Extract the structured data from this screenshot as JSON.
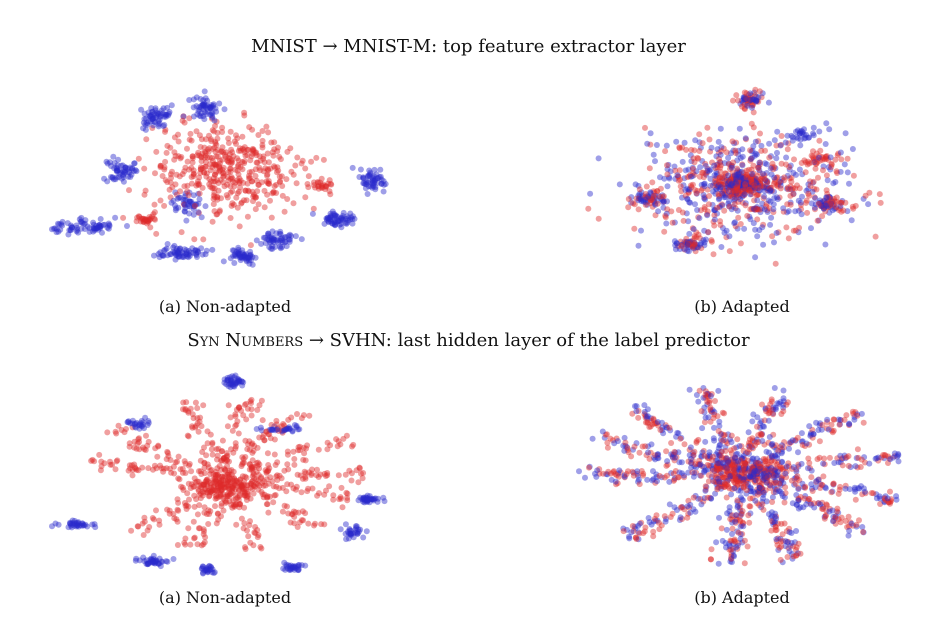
{
  "titles": {
    "top": "MNIST → MNIST-M: top feature extractor layer",
    "bottom_sc": "Syn Numbers",
    "bottom_rest": " → SVHN: last hidden layer of the label predictor"
  },
  "captions": {
    "top_a": "(a) Non-adapted",
    "top_b": "(b) Adapted",
    "bottom_a": "(a) Non-adapted",
    "bottom_b": "(b) Adapted"
  },
  "colors": {
    "source": "#dd2a2a",
    "target": "#2a2acc"
  },
  "chart_data": [
    {
      "type": "scatter",
      "panel": "MNIST → MNIST-M (a) Non-adapted",
      "xlim": [
        -1,
        1
      ],
      "ylim": [
        -1,
        1
      ],
      "series": [
        {
          "color": "#dd2a2a",
          "clusters": [
            {
              "center": [
                0.0,
                0.15
              ],
              "spread": [
                0.42,
                0.45
              ],
              "count": 420
            },
            {
              "center": [
                -0.45,
                -0.35
              ],
              "spread": [
                0.08,
                0.05
              ],
              "count": 30
            },
            {
              "center": [
                0.55,
                0.0
              ],
              "spread": [
                0.08,
                0.06
              ],
              "count": 25
            }
          ]
        },
        {
          "color": "#2a2acc",
          "clusters": [
            {
              "center": [
                -0.82,
                -0.42
              ],
              "spread": [
                0.2,
                0.07
              ],
              "count": 70
            },
            {
              "center": [
                -0.6,
                0.15
              ],
              "spread": [
                0.08,
                0.12
              ],
              "count": 55
            },
            {
              "center": [
                -0.4,
                0.68
              ],
              "spread": [
                0.1,
                0.12
              ],
              "count": 60
            },
            {
              "center": [
                -0.12,
                0.75
              ],
              "spread": [
                0.1,
                0.12
              ],
              "count": 55
            },
            {
              "center": [
                -0.25,
                -0.68
              ],
              "spread": [
                0.12,
                0.07
              ],
              "count": 65
            },
            {
              "center": [
                0.1,
                -0.72
              ],
              "spread": [
                0.08,
                0.08
              ],
              "count": 50
            },
            {
              "center": [
                0.3,
                -0.55
              ],
              "spread": [
                0.1,
                0.1
              ],
              "count": 55
            },
            {
              "center": [
                0.65,
                -0.35
              ],
              "spread": [
                0.1,
                0.08
              ],
              "count": 60
            },
            {
              "center": [
                0.85,
                0.05
              ],
              "spread": [
                0.08,
                0.1
              ],
              "count": 55
            },
            {
              "center": [
                -0.2,
                -0.2
              ],
              "spread": [
                0.1,
                0.12
              ],
              "count": 45
            }
          ]
        }
      ]
    },
    {
      "type": "scatter",
      "panel": "MNIST → MNIST-M (b) Adapted",
      "xlim": [
        -1,
        1
      ],
      "ylim": [
        -1,
        1
      ],
      "series": [
        {
          "color": "#dd2a2a",
          "clusters": [
            {
              "center": [
                0.0,
                0.0
              ],
              "spread": [
                0.6,
                0.5
              ],
              "count": 330
            },
            {
              "center": [
                0.0,
                0.0
              ],
              "spread": [
                0.15,
                0.1
              ],
              "count": 140
            },
            {
              "center": [
                0.05,
                0.85
              ],
              "spread": [
                0.07,
                0.07
              ],
              "count": 30
            },
            {
              "center": [
                -0.55,
                -0.15
              ],
              "spread": [
                0.1,
                0.08
              ],
              "count": 30
            },
            {
              "center": [
                0.5,
                -0.2
              ],
              "spread": [
                0.1,
                0.07
              ],
              "count": 30
            },
            {
              "center": [
                0.45,
                0.25
              ],
              "spread": [
                0.12,
                0.08
              ],
              "count": 30
            },
            {
              "center": [
                -0.3,
                -0.6
              ],
              "spread": [
                0.12,
                0.06
              ],
              "count": 30
            }
          ]
        },
        {
          "color": "#2a2acc",
          "clusters": [
            {
              "center": [
                0.0,
                0.0
              ],
              "spread": [
                0.6,
                0.5
              ],
              "count": 330
            },
            {
              "center": [
                0.0,
                0.0
              ],
              "spread": [
                0.12,
                0.08
              ],
              "count": 90
            },
            {
              "center": [
                0.05,
                0.85
              ],
              "spread": [
                0.07,
                0.07
              ],
              "count": 30
            },
            {
              "center": [
                -0.55,
                -0.15
              ],
              "spread": [
                0.1,
                0.08
              ],
              "count": 30
            },
            {
              "center": [
                0.5,
                -0.2
              ],
              "spread": [
                0.1,
                0.07
              ],
              "count": 30
            },
            {
              "center": [
                0.35,
                0.5
              ],
              "spread": [
                0.12,
                0.08
              ],
              "count": 30
            },
            {
              "center": [
                -0.3,
                -0.6
              ],
              "spread": [
                0.12,
                0.06
              ],
              "count": 30
            }
          ]
        }
      ]
    },
    {
      "type": "scatter",
      "panel": "Syn Numbers → SVHN (a) Non-adapted",
      "xlim": [
        -1,
        1
      ],
      "ylim": [
        -1,
        1
      ],
      "series": [
        {
          "color": "#dd2a2a",
          "clusters": [
            {
              "center": [
                0.0,
                -0.1
              ],
              "spread": [
                0.22,
                0.18
              ],
              "count": 200
            }
          ],
          "arms_angles_deg": [
            100,
            75,
            52,
            20,
            -5,
            -25,
            -52,
            -82,
            -110,
            -135,
            165,
            140
          ],
          "arm_length": 0.6
        },
        {
          "color": "#2a2acc",
          "clusters": [
            {
              "center": [
                0.05,
                0.92
              ],
              "spread": [
                0.06,
                0.06
              ],
              "count": 40
            },
            {
              "center": [
                0.35,
                0.45
              ],
              "spread": [
                0.12,
                0.04
              ],
              "count": 30
            },
            {
              "center": [
                0.82,
                -0.25
              ],
              "spread": [
                0.08,
                0.04
              ],
              "count": 35
            },
            {
              "center": [
                0.75,
                -0.58
              ],
              "spread": [
                0.06,
                0.06
              ],
              "count": 30
            },
            {
              "center": [
                0.38,
                -0.92
              ],
              "spread": [
                0.06,
                0.05
              ],
              "count": 30
            },
            {
              "center": [
                -0.1,
                -0.95
              ],
              "spread": [
                0.05,
                0.05
              ],
              "count": 25
            },
            {
              "center": [
                -0.42,
                -0.86
              ],
              "spread": [
                0.1,
                0.05
              ],
              "count": 40
            },
            {
              "center": [
                -0.85,
                -0.5
              ],
              "spread": [
                0.12,
                0.03
              ],
              "count": 35
            },
            {
              "center": [
                -0.5,
                0.5
              ],
              "spread": [
                0.06,
                0.05
              ],
              "count": 25
            }
          ]
        }
      ]
    },
    {
      "type": "scatter",
      "panel": "Syn Numbers → SVHN (b) Adapted",
      "xlim": [
        -1,
        1
      ],
      "ylim": [
        -1,
        1
      ],
      "series": [
        {
          "color": "#dd2a2a",
          "clusters": [
            {
              "center": [
                0.0,
                0.0
              ],
              "spread": [
                0.2,
                0.15
              ],
              "count": 170
            }
          ],
          "arms_angles_deg": [
            100,
            70,
            40,
            8,
            -20,
            -45,
            -75,
            -100,
            -140,
            175,
            150,
            128
          ],
          "arm_length": 0.7
        },
        {
          "color": "#2a2acc",
          "clusters": [
            {
              "center": [
                0.05,
                0.0
              ],
              "spread": [
                0.15,
                0.12
              ],
              "count": 80
            }
          ],
          "arms_angles_deg": [
            100,
            70,
            40,
            8,
            -20,
            -45,
            -75,
            -100,
            -140,
            175,
            150,
            128
          ],
          "arm_length": 0.72
        }
      ]
    }
  ]
}
